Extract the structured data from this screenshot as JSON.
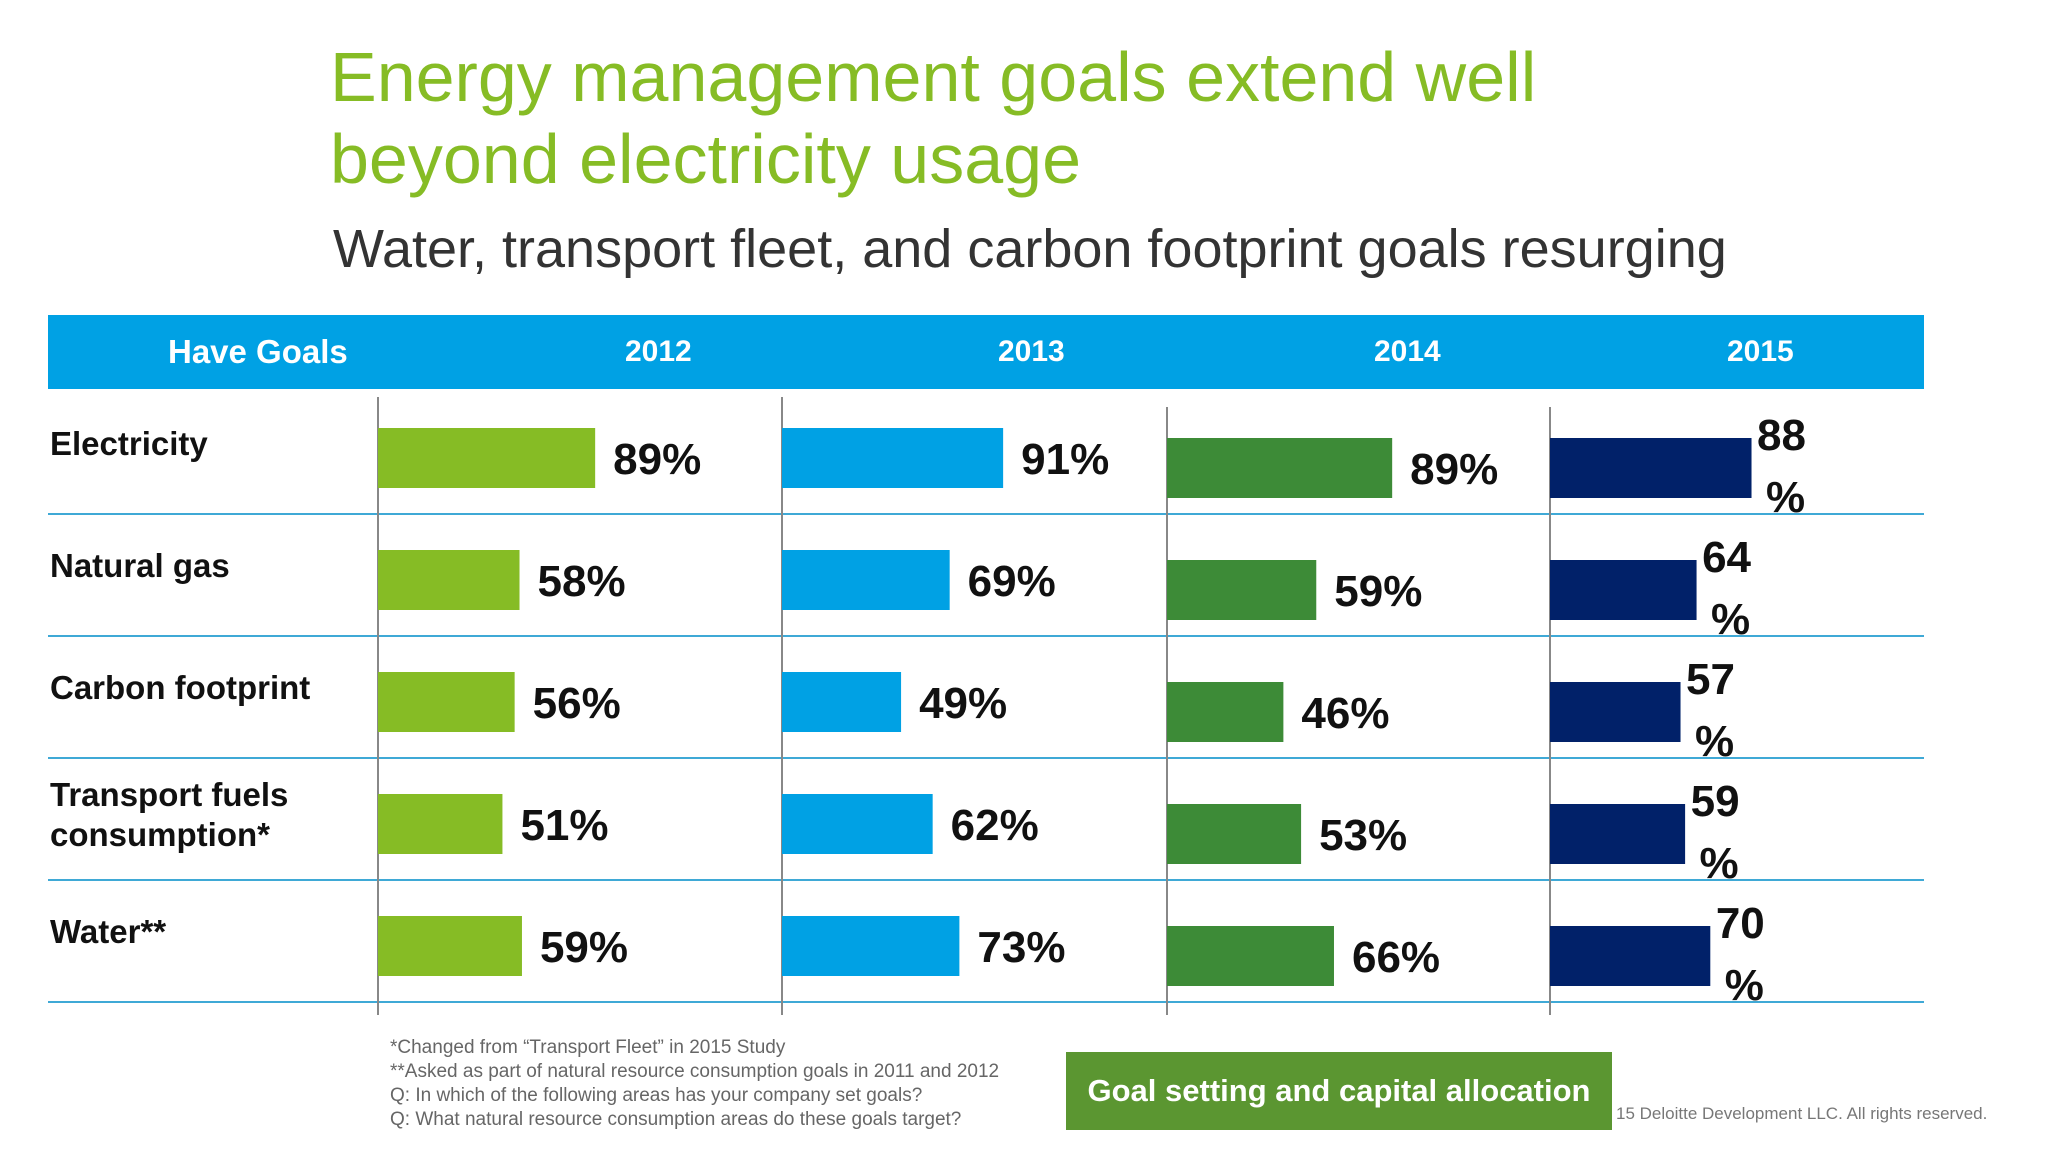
{
  "title": "Energy management goals extend well beyond electricity usage",
  "subtitle": "Water, transport fleet, and carbon footprint goals resurging",
  "chart_data": {
    "type": "bar",
    "orientation": "horizontal",
    "row_header": "Have Goals",
    "categories": [
      "Electricity",
      "Natural gas",
      "Carbon footprint",
      "Transport fuels consumption*",
      "Water**"
    ],
    "series": [
      {
        "name": "2012",
        "color": "#86bc25",
        "values": [
          89,
          58,
          56,
          51,
          59
        ],
        "labels": [
          "89%",
          "58%",
          "56%",
          "51%",
          "59%"
        ]
      },
      {
        "name": "2013",
        "color": "#00a1e4",
        "values": [
          91,
          69,
          49,
          62,
          73
        ],
        "labels": [
          "91%",
          "69%",
          "49%",
          "62%",
          "73%"
        ]
      },
      {
        "name": "2014",
        "color": "#3d8b37",
        "values": [
          89,
          59,
          46,
          53,
          66
        ],
        "labels": [
          "89%",
          "59%",
          "46%",
          "53%",
          "66%"
        ]
      },
      {
        "name": "2015",
        "color": "#012169",
        "values": [
          88,
          64,
          57,
          59,
          70
        ],
        "labels": [
          "88 %",
          "64 %",
          "57 %",
          "59 %",
          "70 %"
        ]
      }
    ],
    "value_unit": "%"
  },
  "footnotes": [
    "*Changed from “Transport Fleet” in 2015 Study",
    "**Asked as part of natural resource consumption goals in 2011 and 2012",
    "Q:  In which of the following areas has your company set goals?",
    "Q:  What natural resource consumption areas do these goals target?"
  ],
  "badge": "Goal setting and capital allocation",
  "copyright": "15 Deloitte Development LLC. All rights reserved.",
  "colors": {
    "title": "#86bc25",
    "header_bar": "#00a1e4",
    "row_line": "#3fa9d6",
    "badge": "#5b9631"
  }
}
